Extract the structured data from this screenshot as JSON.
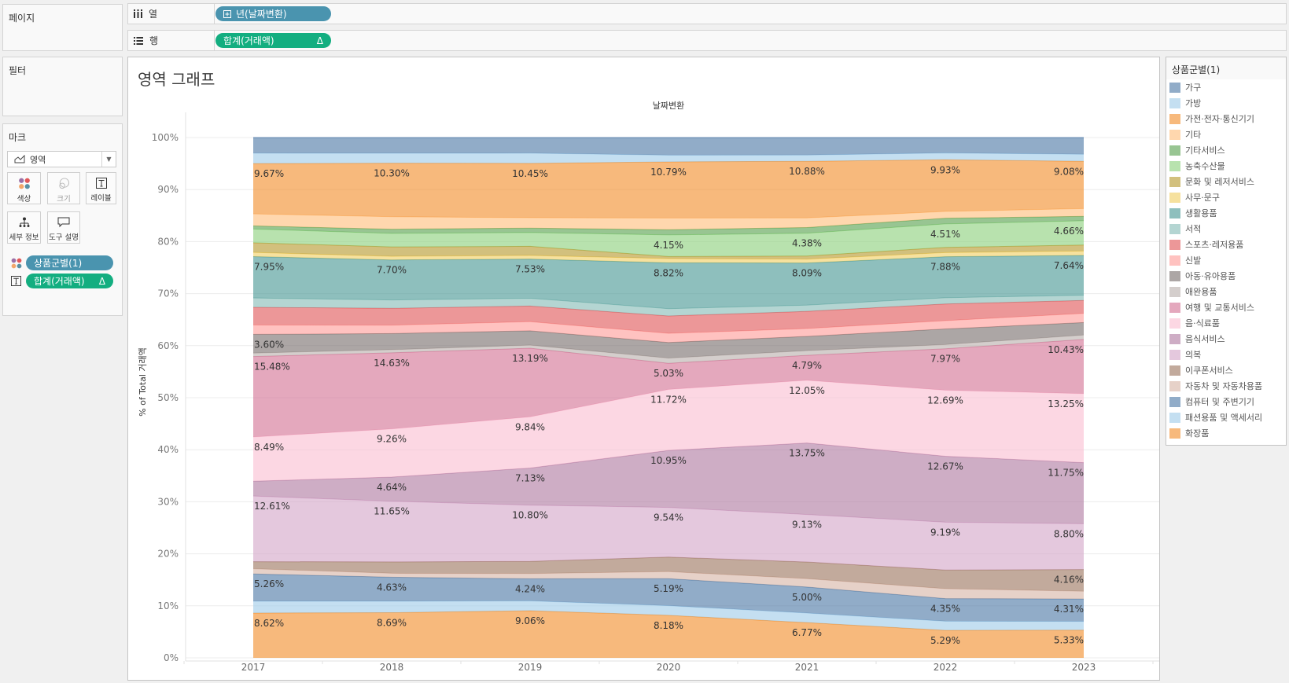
{
  "pages_panel": {
    "title": "페이지"
  },
  "filters_panel": {
    "title": "필터"
  },
  "marks_panel": {
    "title": "마크",
    "mark_type": "영역",
    "mark_type_icon": "area-chart-icon",
    "buttons": {
      "color": "색상",
      "size": "크기",
      "label": "레이블",
      "detail": "세부 정보",
      "tooltip": "도구 설명"
    },
    "pills": [
      {
        "field": "상품군별(1)",
        "encoding": "color",
        "icon": "color-dots-icon"
      },
      {
        "field": "합계(거래액)",
        "encoding": "label",
        "icon": "text-label-icon",
        "suffix": "Δ"
      }
    ]
  },
  "shelves": {
    "columns": {
      "label": "열",
      "icon": "columns-icon",
      "pill": "년(날짜변환)",
      "pill_icon": "expand-box-icon"
    },
    "rows": {
      "label": "행",
      "icon": "rows-icon",
      "pill": "합계(거래액)",
      "pill_suffix": "Δ"
    }
  },
  "colors": {
    "dimension_pill": "#4a94af",
    "measure_pill": "#13ae80"
  },
  "chart_data": {
    "type": "area",
    "stacked": true,
    "title": "영역 그래프",
    "header": "날짜변환",
    "xlabel": "",
    "ylabel": "% of Total 거래액",
    "categories": [
      "2017",
      "2018",
      "2019",
      "2020",
      "2021",
      "2022",
      "2023"
    ],
    "ylim": [
      0,
      100
    ],
    "y_ticks": [
      "0%",
      "10%",
      "20%",
      "30%",
      "40%",
      "50%",
      "60%",
      "70%",
      "80%",
      "90%",
      "100%"
    ],
    "grid": true,
    "legend": {
      "title": "상품군별(1)",
      "placement": "right"
    },
    "series": [
      {
        "name": "가구",
        "color": "#4e79a7",
        "values": [
          3.01,
          3.02,
          3.01,
          3.38,
          3.36,
          2.97,
          3.21
        ],
        "labels": [
          null,
          null,
          null,
          null,
          null,
          null,
          null
        ]
      },
      {
        "name": "가방",
        "color": "#a0cbe8",
        "values": [
          2.0,
          1.9,
          1.95,
          1.3,
          1.2,
          1.3,
          1.36
        ],
        "labels": [
          null,
          null,
          null,
          null,
          null,
          null,
          null
        ]
      },
      {
        "name": "가전·전자·통신기기",
        "color": "#f28e2b",
        "values": [
          9.67,
          10.3,
          10.45,
          10.79,
          10.88,
          9.93,
          9.08
        ],
        "labels": [
          "9.67%",
          "10.30%",
          "10.45%",
          "10.79%",
          "10.88%",
          "9.93%",
          "9.08%"
        ]
      },
      {
        "name": "기타",
        "color": "#ffbe7d",
        "values": [
          2.3,
          2.4,
          2.0,
          2.25,
          1.85,
          1.3,
          1.5
        ],
        "labels": [
          null,
          null,
          null,
          null,
          null,
          null,
          null
        ]
      },
      {
        "name": "기타서비스",
        "color": "#59a14f",
        "values": [
          0.6,
          0.8,
          0.85,
          1.0,
          1.1,
          1.1,
          0.85
        ],
        "labels": [
          null,
          null,
          null,
          null,
          null,
          null,
          null
        ]
      },
      {
        "name": "농축수산물",
        "color": "#8cd17d",
        "values": [
          2.65,
          2.6,
          2.65,
          4.15,
          4.38,
          4.51,
          4.66
        ],
        "labels": [
          null,
          null,
          null,
          "4.15%",
          "4.38%",
          "4.51%",
          "4.66%"
        ]
      },
      {
        "name": "문화 및 레저서비스",
        "color": "#b6992d",
        "values": [
          1.85,
          1.8,
          1.75,
          0.4,
          0.6,
          1.0,
          1.15
        ],
        "labels": [
          null,
          null,
          null,
          null,
          null,
          null,
          null
        ]
      },
      {
        "name": "사무·문구",
        "color": "#f1ce63",
        "values": [
          0.8,
          0.7,
          0.7,
          0.8,
          0.75,
          0.8,
          0.85
        ],
        "labels": [
          null,
          null,
          null,
          null,
          null,
          null,
          null
        ]
      },
      {
        "name": "생활용품",
        "color": "#499894",
        "values": [
          7.95,
          7.7,
          7.53,
          8.82,
          8.09,
          7.88,
          7.64
        ],
        "labels": [
          "7.95%",
          "7.70%",
          "7.53%",
          "8.82%",
          "8.09%",
          "7.88%",
          "7.64%"
        ]
      },
      {
        "name": "서적",
        "color": "#86bcb6",
        "values": [
          1.8,
          1.6,
          1.5,
          1.4,
          1.2,
          1.2,
          1.0
        ],
        "labels": [
          null,
          null,
          null,
          null,
          null,
          null,
          null
        ]
      },
      {
        "name": "스포츠·레저용품",
        "color": "#e15759",
        "values": [
          3.4,
          3.25,
          3.0,
          3.35,
          3.3,
          3.2,
          2.5
        ],
        "labels": [
          null,
          null,
          null,
          null,
          null,
          null,
          null
        ]
      },
      {
        "name": "신발",
        "color": "#ff9d9a",
        "values": [
          1.8,
          1.6,
          1.75,
          1.75,
          1.5,
          1.6,
          1.75
        ],
        "labels": [
          null,
          null,
          null,
          null,
          null,
          null,
          null
        ]
      },
      {
        "name": "아동·유아용품",
        "color": "#79706e",
        "values": [
          3.6,
          3.1,
          2.75,
          3.0,
          2.75,
          3.0,
          2.4
        ],
        "labels": [
          "3.60%",
          null,
          null,
          null,
          null,
          null,
          null
        ]
      },
      {
        "name": "애완용품",
        "color": "#bab0ac",
        "values": [
          0.65,
          0.6,
          0.6,
          1.0,
          0.9,
          0.8,
          0.85
        ],
        "labels": [
          null,
          null,
          null,
          null,
          null,
          null,
          null
        ]
      },
      {
        "name": "여행 및 교통서비스",
        "color": "#d37295",
        "values": [
          15.48,
          14.63,
          13.19,
          5.03,
          4.79,
          7.97,
          10.43
        ],
        "labels": [
          "15.48%",
          "14.63%",
          "13.19%",
          "5.03%",
          "4.79%",
          "7.97%",
          "10.43%"
        ]
      },
      {
        "name": "음·식료품",
        "color": "#fabfd2",
        "values": [
          8.49,
          9.26,
          9.84,
          11.72,
          12.05,
          12.69,
          13.25
        ],
        "labels": [
          "8.49%",
          "9.26%",
          "9.84%",
          "11.72%",
          "12.05%",
          "12.69%",
          "13.25%"
        ]
      },
      {
        "name": "음식서비스",
        "color": "#b07aa1",
        "values": [
          2.85,
          4.64,
          7.13,
          10.95,
          13.75,
          12.67,
          11.75
        ],
        "labels": [
          null,
          "4.64%",
          "7.13%",
          "10.95%",
          "13.75%",
          "12.67%",
          "11.75%"
        ]
      },
      {
        "name": "의복",
        "color": "#d4a6c8",
        "values": [
          12.61,
          11.65,
          10.8,
          9.54,
          9.13,
          9.19,
          8.8
        ],
        "labels": [
          "12.61%",
          "11.65%",
          "10.80%",
          "9.54%",
          "9.13%",
          "9.19%",
          "8.80%"
        ]
      },
      {
        "name": "이쿠폰서비스",
        "color": "#9d7660",
        "values": [
          1.36,
          2.2,
          2.35,
          2.8,
          3.2,
          3.6,
          4.16
        ],
        "labels": [
          null,
          null,
          null,
          null,
          null,
          null,
          "4.16%"
        ]
      },
      {
        "name": "자동차 및 자동차용품",
        "color": "#d7b5a6",
        "values": [
          1.0,
          0.75,
          1.0,
          1.35,
          1.6,
          1.9,
          1.5
        ],
        "labels": [
          null,
          null,
          null,
          null,
          null,
          null,
          null
        ]
      },
      {
        "name": "컴퓨터 및 주변기기",
        "color": "#4e79a7",
        "values": [
          5.26,
          4.63,
          4.24,
          5.19,
          5.0,
          4.35,
          4.31
        ],
        "labels": [
          "5.26%",
          "4.63%",
          "4.24%",
          "5.19%",
          "5.00%",
          "4.35%",
          "4.31%"
        ]
      },
      {
        "name": "패션용품 및 액세서리",
        "color": "#a0cbe8",
        "values": [
          2.25,
          2.18,
          1.9,
          1.85,
          1.85,
          1.75,
          1.67
        ],
        "labels": [
          null,
          null,
          null,
          null,
          null,
          null,
          null
        ]
      },
      {
        "name": "화장품",
        "color": "#f28e2b",
        "values": [
          8.62,
          8.69,
          9.06,
          8.18,
          6.77,
          5.29,
          5.33
        ],
        "labels": [
          "8.62%",
          "8.69%",
          "9.06%",
          "8.18%",
          "6.77%",
          "5.29%",
          "5.33%"
        ]
      }
    ]
  }
}
